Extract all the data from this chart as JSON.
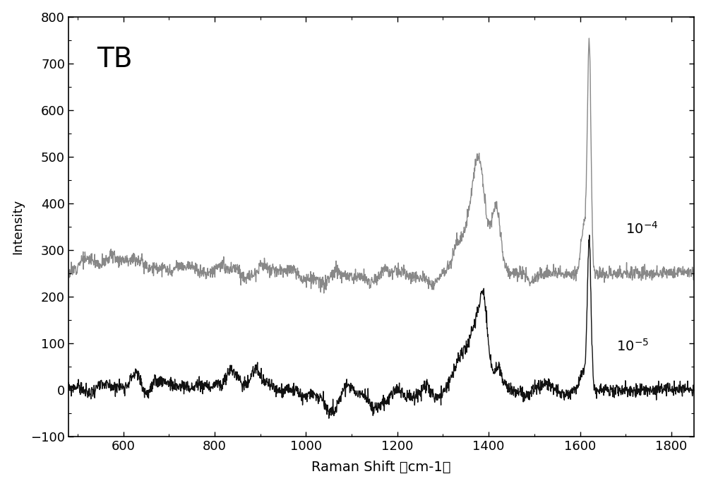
{
  "title": "TB",
  "xlabel": "Raman Shift （cm-1）",
  "ylabel": "Intensity",
  "xlim": [
    480,
    1850
  ],
  "ylim": [
    -100,
    800
  ],
  "xticks": [
    600,
    800,
    1000,
    1200,
    1400,
    1600,
    1800
  ],
  "yticks": [
    -100,
    0,
    100,
    200,
    300,
    400,
    500,
    600,
    700,
    800
  ],
  "label_10_4": "10$^{-4}$",
  "label_10_5": "10$^{-5}$",
  "line1_color": "#888888",
  "line2_color": "#111111",
  "background_color": "#ffffff",
  "line_width": 1.0
}
